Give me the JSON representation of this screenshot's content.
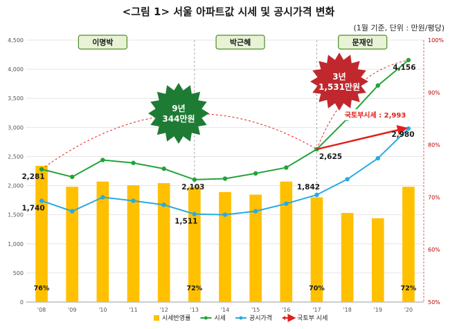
{
  "title": "<그림 1> 서울 아파트값 시세 및 공시가격 변화",
  "unit_note": "(1월 기준, 단위 : 만원/평당)",
  "chart_data": {
    "type": "bar+line",
    "categories": [
      "'08",
      "'09",
      "'10",
      "'11",
      "'12",
      "'13",
      "'14",
      "'15",
      "'16",
      "'17",
      "'18",
      "'19",
      "'20"
    ],
    "y_left": {
      "min": 0,
      "max": 4500,
      "step": 500
    },
    "y_right": {
      "min": 50,
      "max": 100,
      "step": 10,
      "suffix": "%"
    },
    "series": [
      {
        "name": "시세반영률",
        "kind": "bar",
        "axis": "right",
        "values": [
          76,
          72,
          73,
          72.3,
          72.7,
          72,
          71,
          70.5,
          73,
          70,
          67,
          66,
          72
        ],
        "color": "#ffc000"
      },
      {
        "name": "시세",
        "kind": "line",
        "axis": "left",
        "values": [
          2281,
          2150,
          2440,
          2390,
          2290,
          2103,
          2120,
          2210,
          2310,
          2625,
          3150,
          3720,
          4156
        ],
        "color": "#22a33a"
      },
      {
        "name": "공시가격",
        "kind": "line",
        "axis": "left",
        "values": [
          1740,
          1560,
          1800,
          1740,
          1670,
          1511,
          1500,
          1560,
          1690,
          1842,
          2110,
          2470,
          2980
        ],
        "color": "#29a9e1"
      },
      {
        "name": "국토부 시세",
        "kind": "arrow",
        "axis": "left",
        "from": {
          "x": "'17",
          "y": 2625
        },
        "to": {
          "x": "'20",
          "y": 2993
        },
        "color": "#e0201b"
      }
    ],
    "point_labels": [
      {
        "series": "시세",
        "x": "'08",
        "text": "2,281"
      },
      {
        "series": "시세",
        "x": "'13",
        "text": "2,103"
      },
      {
        "series": "시세",
        "x": "'17",
        "text": "2,625"
      },
      {
        "series": "시세",
        "x": "'20",
        "text": "4,156"
      },
      {
        "series": "공시가격",
        "x": "'08",
        "text": "1,740"
      },
      {
        "series": "공시가격",
        "x": "'13",
        "text": "1,511"
      },
      {
        "series": "공시가격",
        "x": "'17",
        "text": "1,842"
      },
      {
        "series": "공시가격",
        "x": "'20",
        "text": "2,980"
      }
    ],
    "bar_labels": [
      {
        "x": "'08",
        "text": "76%"
      },
      {
        "x": "'13",
        "text": "72%"
      },
      {
        "x": "'17",
        "text": "70%"
      },
      {
        "x": "'20",
        "text": "72%"
      }
    ],
    "eras": [
      {
        "name": "이명박",
        "from": "'08",
        "to": "'12"
      },
      {
        "name": "박근혜",
        "from": "'13",
        "to": "'16"
      },
      {
        "name": "문재인",
        "from": "'17",
        "to": "'20"
      }
    ],
    "annotations": [
      {
        "shape": "starburst",
        "color": "#1e7b34",
        "lines": [
          "9년",
          "344만원"
        ]
      },
      {
        "shape": "starburst",
        "color": "#c0282d",
        "lines": [
          "3년",
          "1,531만원"
        ]
      },
      {
        "shape": "text",
        "color": "#e0201b",
        "text": "국토부시세 : 2,993"
      }
    ],
    "legend": {
      "position": "bottom",
      "items": [
        {
          "name": "시세반영률",
          "kind": "bar",
          "color": "#ffc000"
        },
        {
          "name": "시세",
          "kind": "line",
          "color": "#22a33a"
        },
        {
          "name": "공시가격",
          "kind": "line",
          "color": "#29a9e1"
        },
        {
          "name": "국토부 시세",
          "kind": "arrow",
          "color": "#e0201b"
        }
      ]
    }
  }
}
